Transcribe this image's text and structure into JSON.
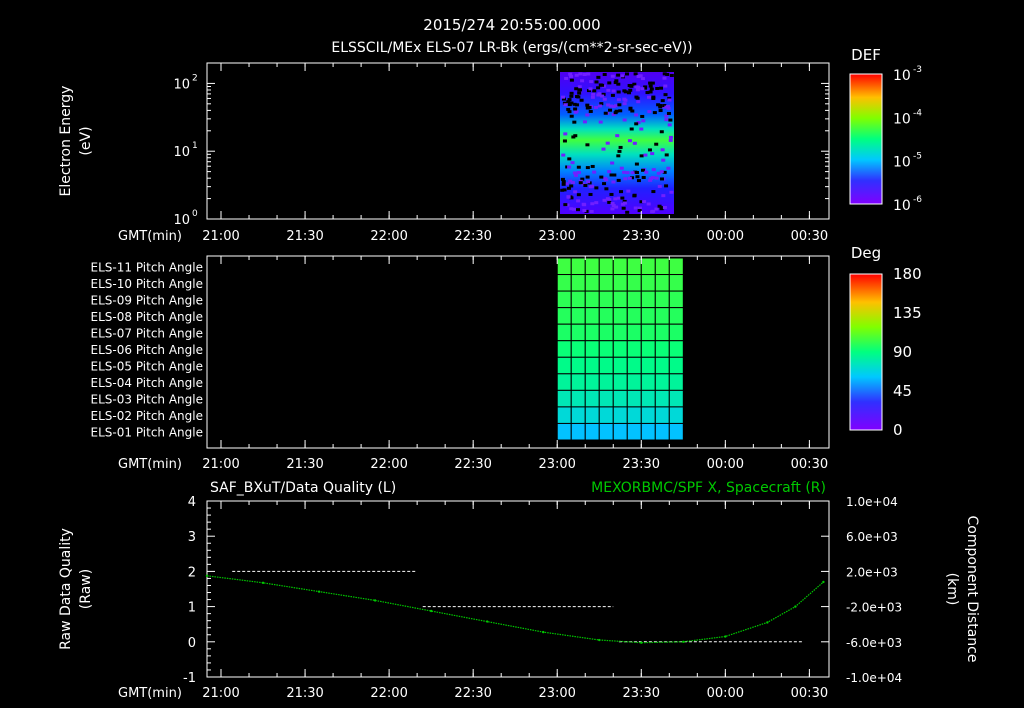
{
  "header": {
    "timestamp": "2015/274 20:55:00.000",
    "subtitle": "ELSSCIL/MEx ELS-07 LR-Bk  (ergs/(cm**2-sr-sec-eV))"
  },
  "time_axis": {
    "label": "GMT(min)",
    "ticks": [
      "21:00",
      "21:30",
      "22:00",
      "22:30",
      "23:00",
      "23:30",
      "00:00",
      "00:30"
    ]
  },
  "chart_data": [
    {
      "type": "heatmap",
      "id": "electron-energy-spectrogram",
      "ylabel": "Electron Energy",
      "ylabel_unit": "(eV)",
      "yscale": "log",
      "ylim": [
        1,
        200
      ],
      "ytick_labels": [
        "10",
        "10",
        "10"
      ],
      "ytick_exponents": [
        "0",
        "1",
        "2"
      ],
      "ytick_values": [
        1,
        10,
        100
      ],
      "x_data_span": [
        "23:00",
        "23:45"
      ],
      "colorbar": {
        "title": "DEF",
        "scale": "log",
        "tick_labels": [
          "10",
          "10",
          "10",
          "10"
        ],
        "tick_exponents": [
          "-3",
          "-4",
          "-5",
          "-6"
        ],
        "tick_values": [
          0.001,
          0.0001,
          1e-05,
          1e-06
        ]
      },
      "peak_band_eV": [
        5,
        30
      ]
    },
    {
      "type": "heatmap",
      "id": "pitch-angle-grid",
      "row_labels": [
        "ELS-11 Pitch Angle",
        "ELS-10 Pitch Angle",
        "ELS-09 Pitch Angle",
        "ELS-08 Pitch Angle",
        "ELS-07 Pitch Angle",
        "ELS-06 Pitch Angle",
        "ELS-05 Pitch Angle",
        "ELS-04 Pitch Angle",
        "ELS-03 Pitch Angle",
        "ELS-02 Pitch Angle",
        "ELS-01 Pitch Angle"
      ],
      "row_values_deg": [
        104,
        102,
        100,
        98,
        96,
        92,
        88,
        84,
        78,
        70,
        60
      ],
      "x_data_span": [
        "23:00",
        "23:45"
      ],
      "colorbar": {
        "title": "Deg",
        "tick_labels": [
          "180",
          "135",
          "90",
          "45",
          "0"
        ],
        "tick_values": [
          180,
          135,
          90,
          45,
          0
        ]
      }
    },
    {
      "type": "line",
      "id": "data-quality-and-distance",
      "left_title": "SAF_BXuT/Data Quality (L)",
      "right_title": "MEXORBMC/SPF X, Spacecraft (R)",
      "ylabel_left": "Raw Data Quality",
      "ylabel_left_unit": "(Raw)",
      "ylim_left": [
        -1,
        4
      ],
      "ytick_labels_left": [
        "4",
        "3",
        "2",
        "1",
        "0",
        "-1"
      ],
      "ylabel_right": "Component Distance",
      "ylabel_right_unit": "(km)",
      "ylim_right": [
        -10000,
        10000
      ],
      "ytick_labels_right": [
        "1.0e+04",
        "6.0e+03",
        "2.0e+03",
        "-2.0e+03",
        "-6.0e+03",
        "-1.0e+04"
      ],
      "series": [
        {
          "name": "SAF_BXuT/Data Quality",
          "axis": "left",
          "segments": [
            {
              "x_start": "21:04",
              "x_end": "22:10",
              "y": 2
            },
            {
              "x_start": "22:12",
              "x_end": "23:20",
              "y": 1
            },
            {
              "x_start": "23:22",
              "x_end": "00:28",
              "y": 0
            }
          ]
        },
        {
          "name": "MEXORBMC/SPF X, Spacecraft",
          "axis": "right",
          "color": "#00c800",
          "x": [
            "20:55",
            "21:15",
            "21:35",
            "21:55",
            "22:15",
            "22:35",
            "22:55",
            "23:15",
            "23:30",
            "23:45",
            "00:00",
            "00:15",
            "00:25",
            "00:35"
          ],
          "y": [
            1500,
            700,
            -300,
            -1300,
            -2500,
            -3700,
            -4900,
            -5800,
            -6100,
            -6000,
            -5400,
            -3800,
            -2000,
            800
          ]
        }
      ]
    }
  ]
}
